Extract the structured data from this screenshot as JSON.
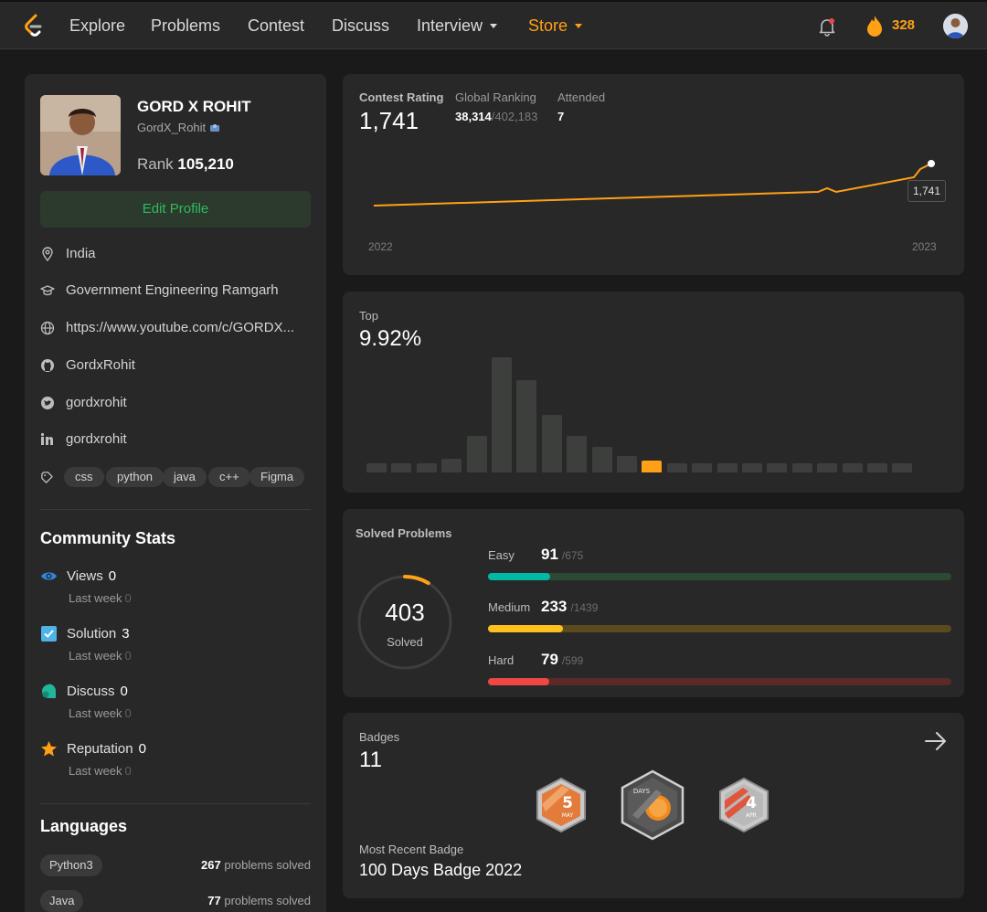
{
  "nav": {
    "links": [
      "Explore",
      "Problems",
      "Contest",
      "Discuss",
      "Interview",
      "Store"
    ],
    "streak": "328"
  },
  "profile": {
    "name": "GORD X ROHIT",
    "handle": "GordX_Rohit",
    "rank_label": "Rank",
    "rank_value": "105,210",
    "edit_label": "Edit Profile",
    "location": "India",
    "school": "Government Engineering Ramgarh",
    "website": "https://www.youtube.com/c/GORDX...",
    "github": "GordxRohit",
    "twitter": "gordxrohit",
    "linkedin": "gordxrohit",
    "skills": [
      "css",
      "python",
      "java",
      "c++",
      "Figma"
    ]
  },
  "community": {
    "title": "Community Stats",
    "stats": [
      {
        "label": "Views",
        "value": "0",
        "sub": "Last week",
        "sub_value": "0"
      },
      {
        "label": "Solution",
        "value": "3",
        "sub": "Last week",
        "sub_value": "0"
      },
      {
        "label": "Discuss",
        "value": "0",
        "sub": "Last week",
        "sub_value": "0"
      },
      {
        "label": "Reputation",
        "value": "0",
        "sub": "Last week",
        "sub_value": "0"
      }
    ]
  },
  "languages": {
    "title": "Languages",
    "items": [
      {
        "name": "Python3",
        "count": "267",
        "suffix": "problems solved"
      },
      {
        "name": "Java",
        "count": "77",
        "suffix": "problems solved"
      }
    ]
  },
  "contest": {
    "rating_label": "Contest Rating",
    "rating": "1,741",
    "global_label": "Global Ranking",
    "global_rank": "38,314",
    "global_total": "/402,183",
    "attended_label": "Attended",
    "attended": "7",
    "year_start": "2022",
    "year_end": "2023",
    "tooltip": "1,741"
  },
  "top": {
    "label": "Top",
    "value": "9.92%",
    "histogram": [
      4,
      4,
      4,
      6,
      16,
      50,
      40,
      25,
      16,
      11,
      7,
      5,
      3,
      3,
      3,
      3,
      3,
      3,
      3,
      3,
      3,
      3
    ],
    "active_index": 11
  },
  "solved": {
    "title": "Solved Problems",
    "total": "403",
    "total_label": "Solved",
    "progress_fraction": 0.086,
    "difficulties": [
      {
        "name": "Easy",
        "solved": "91",
        "total": "/675",
        "fraction": 0.135,
        "color": "#00b8a3",
        "track": "#2c4a33"
      },
      {
        "name": "Medium",
        "solved": "233",
        "total": "/1439",
        "fraction": 0.162,
        "color": "#ffc01e",
        "track": "#5a4a1e"
      },
      {
        "name": "Hard",
        "solved": "79",
        "total": "/599",
        "fraction": 0.132,
        "color": "#ef4743",
        "track": "#5a2a28"
      }
    ]
  },
  "badges": {
    "label": "Badges",
    "count": "11",
    "recent_label": "Most Recent Badge",
    "recent": "100 Days Badge 2022",
    "badge_texts": [
      "5",
      "MAY",
      "DAYS",
      "4",
      "APR"
    ]
  },
  "colors": {
    "accent": "#ffa116",
    "green": "#2cbb5d",
    "bg": "#1a1a1a",
    "card": "#282828"
  }
}
